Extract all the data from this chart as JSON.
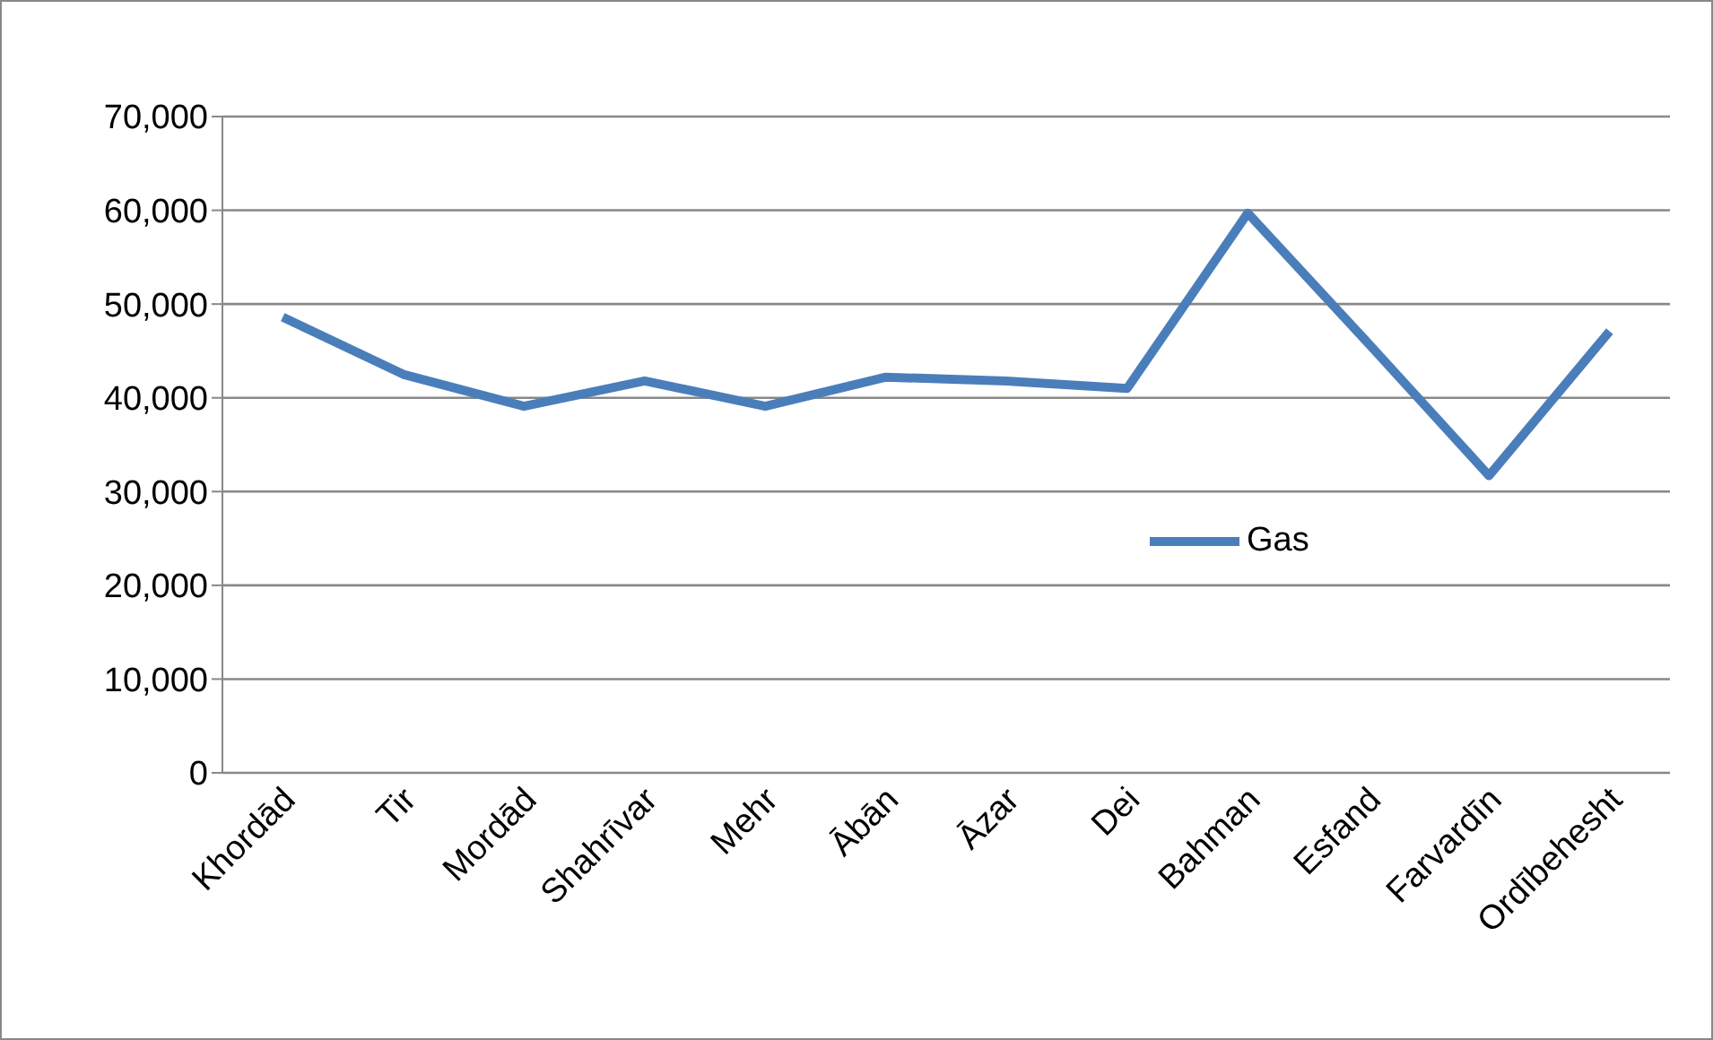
{
  "chart_data": {
    "type": "line",
    "categories": [
      "Khordād",
      "Tir",
      "Mordād",
      "Shahrīvar",
      "Mehr",
      "Ābān",
      "Āzar",
      "Dei",
      "Bahman",
      "Esfand",
      "Farvardīn",
      "Ordībehesht"
    ],
    "series": [
      {
        "name": "Gas",
        "color": "#4a7ebb",
        "values": [
          48600,
          42500,
          39100,
          41800,
          39100,
          42200,
          41800,
          41000,
          59700,
          45800,
          31700,
          47100
        ]
      }
    ],
    "ylim": [
      0,
      70000
    ],
    "yticks": [
      0,
      {
        "value": 10000,
        "label": "10,000"
      },
      {
        "value": 20000,
        "label": "20,000"
      },
      {
        "value": 30000,
        "label": "30,000"
      },
      {
        "value": 40000,
        "label": "40,000"
      },
      {
        "value": 50000,
        "label": "50,000"
      },
      {
        "value": 60000,
        "label": "60,000"
      },
      {
        "value": 70000,
        "label": "70,000"
      }
    ],
    "grid": "y",
    "legend": "right",
    "marker": "none",
    "line_style": "solid"
  }
}
